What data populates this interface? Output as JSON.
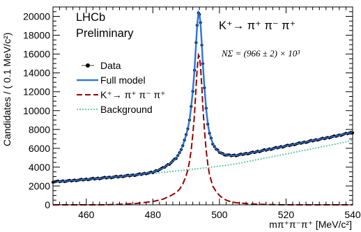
{
  "chart_data": {
    "type": "line",
    "annotations": {
      "experiment": "LHCb",
      "status": "Preliminary",
      "decay": "K⁺→ π⁺ π⁻ π⁺",
      "yield": "NΣ = (966 ± 2) × 10³"
    },
    "xlabel": "mπ⁺π⁻π⁺ [MeV/c²]",
    "ylabel": "Candidates / ( 0.1 MeV/c²)",
    "xlim": [
      450,
      540
    ],
    "ylim": [
      0,
      21000
    ],
    "x_ticks": [
      460,
      480,
      500,
      520,
      540
    ],
    "y_ticks": [
      0,
      2000,
      4000,
      6000,
      8000,
      10000,
      12000,
      14000,
      16000,
      18000,
      20000
    ],
    "legend_position": "upper-left",
    "legend": [
      "Data",
      "Full model",
      "K⁺→ π⁺ π⁻ π⁺",
      "Background"
    ],
    "x": [
      450,
      455,
      460,
      465,
      470,
      475,
      480,
      483,
      485,
      487,
      488,
      489,
      490,
      490.5,
      491,
      491.5,
      492,
      492.5,
      493,
      493.3,
      493.7,
      494,
      494.3,
      494.7,
      495,
      495.5,
      496,
      496.5,
      497,
      498,
      499,
      500,
      501,
      502,
      503,
      505,
      510,
      515,
      520,
      525,
      530,
      535,
      540
    ],
    "series": [
      {
        "name": "Data",
        "style": "markers",
        "color": "#000000",
        "values": [
          2450,
          2550,
          2700,
          2850,
          3000,
          3180,
          3450,
          3900,
          4350,
          4950,
          5500,
          6300,
          7400,
          8100,
          9000,
          10400,
          12100,
          14300,
          17200,
          19000,
          20400,
          20200,
          19300,
          17000,
          15000,
          12400,
          10200,
          8600,
          7600,
          6500,
          5900,
          5600,
          5400,
          5300,
          5250,
          5250,
          5550,
          5900,
          6250,
          6600,
          6950,
          7300,
          7700
        ]
      },
      {
        "name": "Full model",
        "style": "solid",
        "color": "#3377dd",
        "values": [
          2450,
          2550,
          2700,
          2850,
          3000,
          3180,
          3450,
          3900,
          4350,
          4950,
          5500,
          6300,
          7400,
          8100,
          9000,
          10400,
          12100,
          14300,
          17200,
          19000,
          20400,
          20200,
          19300,
          17000,
          15000,
          12400,
          10200,
          8600,
          7600,
          6500,
          5900,
          5600,
          5400,
          5300,
          5250,
          5250,
          5550,
          5900,
          6250,
          6600,
          6950,
          7300,
          7700
        ]
      },
      {
        "name": "K⁺→ π⁺ π⁻ π⁺",
        "style": "dashed",
        "color": "#990000",
        "values": [
          0,
          0,
          0,
          0,
          50,
          150,
          350,
          600,
          900,
          1300,
          1650,
          2200,
          3100,
          3700,
          4600,
          5800,
          7500,
          9600,
          12600,
          14400,
          15900,
          15700,
          14700,
          12500,
          10500,
          7900,
          5800,
          4300,
          3200,
          2000,
          1400,
          1000,
          700,
          500,
          380,
          220,
          80,
          30,
          0,
          0,
          0,
          0,
          0
        ]
      },
      {
        "name": "Background",
        "style": "dotted",
        "color": "#66ccaa",
        "values": [
          null,
          null,
          null,
          null,
          null,
          null,
          3300,
          3450,
          3520,
          3590,
          3620,
          3660,
          3700,
          3720,
          3740,
          3760,
          3780,
          3800,
          3820,
          3830,
          3845,
          3860,
          3870,
          3885,
          3900,
          3920,
          3940,
          3960,
          3980,
          4020,
          4060,
          4100,
          4150,
          4200,
          4250,
          4350,
          4700,
          5050,
          5400,
          5750,
          6100,
          6450,
          6850
        ]
      }
    ]
  }
}
